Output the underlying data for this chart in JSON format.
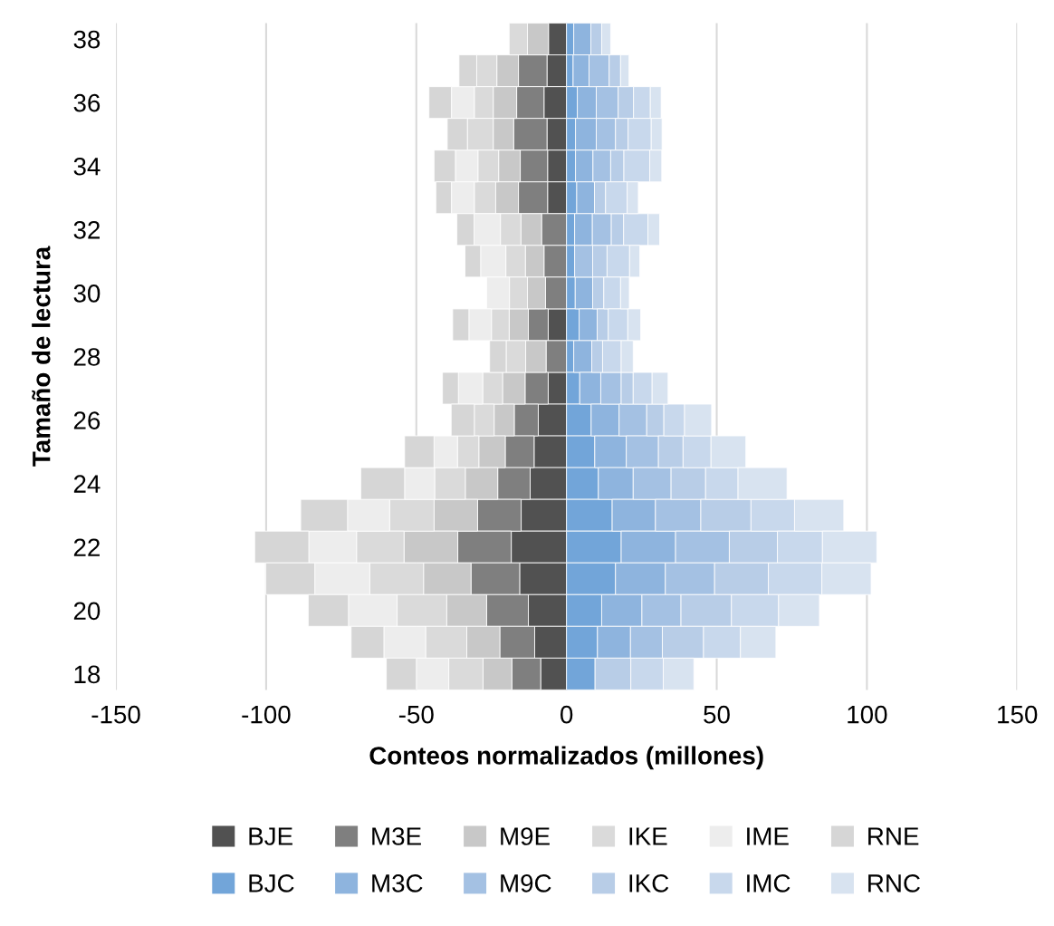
{
  "chart_data": {
    "type": "bar",
    "orientation": "horizontal",
    "stacked": true,
    "xlabel": "Conteos normalizados (millones)",
    "ylabel": "Tamaño de lectura",
    "categories": [
      "38",
      null,
      "36",
      null,
      "34",
      null,
      "32",
      null,
      "30",
      null,
      "28",
      null,
      "26",
      null,
      "24",
      null,
      "22",
      null,
      "20",
      null,
      "18"
    ],
    "xlim": [
      -150,
      150
    ],
    "xticks": [
      -150,
      -100,
      -50,
      0,
      50,
      100,
      150
    ],
    "grid": "x",
    "legend": "bottom",
    "series": [
      {
        "name": "BJE",
        "color": "#515151",
        "values": [
          -6,
          -6.5,
          -7.5,
          -6.5,
          -6.3,
          -6.3,
          null,
          null,
          null,
          -6.1,
          null,
          -6.1,
          -9.4,
          -10.8,
          -12.1,
          -15.1,
          -18.4,
          -15.6,
          -12.7,
          -10.6,
          -8.6
        ]
      },
      {
        "name": "M3E",
        "color": "#7f7f7f",
        "values": [
          null,
          -9.5,
          -9.1,
          -11.1,
          -9.1,
          -9.7,
          -8.3,
          -7.5,
          -7.0,
          -6.6,
          -6.8,
          -7.7,
          -8.0,
          -9.6,
          -10.8,
          -14.5,
          -17.8,
          -16.2,
          -13.9,
          -11.6,
          -9.6
        ]
      },
      {
        "name": "M9E",
        "color": "#c8c8c8",
        "values": [
          -7,
          -7.2,
          -7.8,
          -6.8,
          -7.2,
          -7.6,
          -6.9,
          -6.2,
          -6.0,
          -6.4,
          -6.8,
          -7.5,
          -6.7,
          -8.8,
          -10.8,
          -14.5,
          -17.9,
          -15.8,
          -13.3,
          -11.0,
          -9.6
        ]
      },
      {
        "name": "IKE",
        "color": "#dadada",
        "values": [
          -6.1,
          -6.7,
          -6.3,
          -8.6,
          -6.9,
          -7.1,
          -6.8,
          -6.5,
          -6.0,
          -5.9,
          -6.5,
          -6.6,
          -6.6,
          -7.1,
          -10.2,
          -14.8,
          -15.8,
          -17.9,
          -16.5,
          -13.7,
          -11.4
        ]
      },
      {
        "name": "IME",
        "color": "#ededed",
        "values": [
          null,
          null,
          -7.6,
          null,
          -7.5,
          -7.6,
          -8.8,
          -8.4,
          -7.6,
          -7.5,
          null,
          -8.1,
          null,
          -7.8,
          -10.0,
          -14.0,
          -15.9,
          -18.3,
          -16.2,
          -13.9,
          -10.8
        ]
      },
      {
        "name": "RNE",
        "color": "#d6d6d6",
        "values": [
          null,
          -5.9,
          -7.5,
          -6.7,
          -7.1,
          -5.2,
          -5.7,
          -5.2,
          null,
          -5.4,
          -5.5,
          -5.3,
          -7.7,
          -9.8,
          -14.6,
          -15.6,
          -18.0,
          -16.3,
          -13.4,
          -10.9,
          -10.0
        ]
      },
      {
        "name": "BJC",
        "color": "#72a5d9",
        "values": [
          2.4,
          2.2,
          3.6,
          3.0,
          3.0,
          3.4,
          2.7,
          2.7,
          2.9,
          4.2,
          2.4,
          4.4,
          8.2,
          9.4,
          10.6,
          15.2,
          18.2,
          16.3,
          11.7,
          10.3,
          9.5
        ]
      },
      {
        "name": "M3C",
        "color": "#8eb4de",
        "values": [
          5.7,
          5.3,
          6.3,
          6.9,
          5.8,
          5.9,
          5.9,
          null,
          5.8,
          6.0,
          6.0,
          7.0,
          9.3,
          10.5,
          11.6,
          14.4,
          18.1,
          16.6,
          13.4,
          11.0,
          null
        ]
      },
      {
        "name": "M9C",
        "color": "#a4c1e3",
        "values": [
          null,
          6.7,
          7.3,
          6.4,
          5.9,
          null,
          6.3,
          6.0,
          null,
          null,
          null,
          6.8,
          9.2,
          10.7,
          12.6,
          15.1,
          17.9,
          16.4,
          13.0,
          10.6,
          null
        ]
      },
      {
        "name": "IKC",
        "color": "#b8cde7",
        "values": [
          3.6,
          3.8,
          5.1,
          4.2,
          4.4,
          3.7,
          4.1,
          4.8,
          3.7,
          3.7,
          3.6,
          4.0,
          5.7,
          8.2,
          11.5,
          16.7,
          16.0,
          17.9,
          16.8,
          13.7,
          11.9
        ]
      },
      {
        "name": "IMC",
        "color": "#c8d8ec",
        "values": [
          null,
          null,
          5.6,
          7.7,
          8.6,
          7.2,
          8.1,
          7.5,
          5.6,
          6.5,
          6.2,
          6.3,
          6.9,
          9.3,
          10.8,
          14.5,
          15.0,
          17.8,
          15.7,
          12.3,
          10.8
        ]
      },
      {
        "name": "RNC",
        "color": "#d8e3f0",
        "values": [
          3.0,
          2.8,
          3.6,
          3.6,
          4.0,
          3.7,
          3.9,
          3.4,
          2.9,
          4.3,
          4.0,
          5.3,
          9.0,
          11.6,
          16.3,
          16.4,
          18.1,
          16.4,
          13.6,
          11.8,
          10.2
        ]
      }
    ]
  }
}
